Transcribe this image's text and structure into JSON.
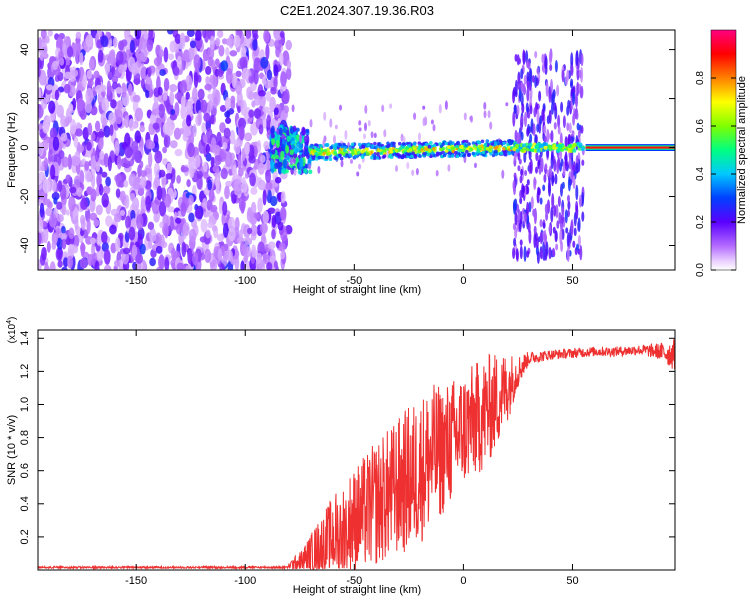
{
  "title": "C2E1.2024.307.19.36.R03",
  "chart_data": [
    {
      "type": "heatmap",
      "xlabel": "Height of straight line (km)",
      "ylabel": "Frequency (Hz)",
      "xlim": [
        -195,
        97
      ],
      "ylim": [
        -50,
        48
      ],
      "xticks": [
        -150,
        -100,
        -50,
        0,
        50
      ],
      "yticks": [
        -40,
        -20,
        0,
        20,
        40
      ],
      "colorbar": {
        "label": "Normalized spectral amplitude",
        "range": [
          0,
          1
        ],
        "ticks": [
          "0.0",
          "0.2",
          "0.4",
          "0.6",
          "0.8"
        ],
        "tick_values": [
          0.0,
          0.2,
          0.4,
          0.6,
          0.8
        ],
        "colormap": "rainbow (white-magenta-violet-blue-cyan-green-yellow-red-magenta)"
      },
      "regions": [
        {
          "x": [
            -195,
            -80
          ],
          "freq_spread": [
            -50,
            48
          ],
          "amplitude": "low, 0.05-0.25"
        },
        {
          "x": [
            -88,
            -70
          ],
          "freq_center": 0,
          "freq_spread": [
            -10,
            8
          ],
          "amplitude": "0.3-0.6"
        },
        {
          "x": [
            -70,
            25
          ],
          "freq_center": -2,
          "freq_spread": [
            -4,
            3
          ],
          "amplitude": "0.4-0.8"
        },
        {
          "x": [
            23,
            55
          ],
          "freq_spread": [
            -45,
            38
          ],
          "amplitude": "low, 0.1-0.3",
          "center_band": "0.4-0.9"
        },
        {
          "x": [
            56,
            97
          ],
          "freq_center": 0,
          "freq_spread": [
            -1,
            1
          ],
          "amplitude": "0.9-1.0"
        }
      ]
    },
    {
      "type": "line",
      "xlabel": "Height of straight line (km)",
      "ylabel": "SNR (10 * v/v)",
      "y_multiplier": "(x10",
      "y_multiplier_exp": "4",
      "y_multiplier_close": ")",
      "xlim": [
        -195,
        97
      ],
      "ylim": [
        0,
        1.45
      ],
      "xticks": [
        -150,
        -100,
        -50,
        0,
        50
      ],
      "yticks": [
        "0.2",
        "0.4",
        "0.6",
        "0.8",
        "1.0",
        "1.2",
        "1.4"
      ],
      "ytick_values": [
        0.2,
        0.4,
        0.6,
        0.8,
        1.0,
        1.2,
        1.4
      ],
      "color": "#ee3030",
      "series": [
        {
          "x": [
            -195,
            -150,
            -100,
            -85,
            -80,
            -75,
            -70,
            -65,
            -60,
            -55,
            -50,
            -45,
            -40,
            -35,
            -30,
            -25,
            -20,
            -15,
            -10,
            -5,
            0,
            5,
            10,
            15,
            20,
            25,
            30,
            40,
            50,
            60,
            70,
            80,
            90,
            97
          ],
          "y": [
            0.01,
            0.01,
            0.02,
            0.02,
            0.03,
            0.05,
            0.1,
            0.15,
            0.2,
            0.25,
            0.3,
            0.35,
            0.4,
            0.45,
            0.5,
            0.55,
            0.6,
            0.68,
            0.72,
            0.78,
            0.85,
            0.9,
            0.95,
            1.02,
            1.1,
            1.2,
            1.28,
            1.3,
            1.31,
            1.32,
            1.32,
            1.33,
            1.32,
            1.3
          ],
          "noise_amplitude": [
            0,
            0,
            0,
            0.01,
            0.02,
            0.06,
            0.12,
            0.18,
            0.25,
            0.3,
            0.32,
            0.35,
            0.38,
            0.4,
            0.42,
            0.45,
            0.45,
            0.45,
            0.4,
            0.38,
            0.35,
            0.35,
            0.35,
            0.3,
            0.22,
            0.1,
            0.04,
            0.03,
            0.03,
            0.03,
            0.03,
            0.03,
            0.05,
            0.1
          ]
        }
      ]
    }
  ]
}
